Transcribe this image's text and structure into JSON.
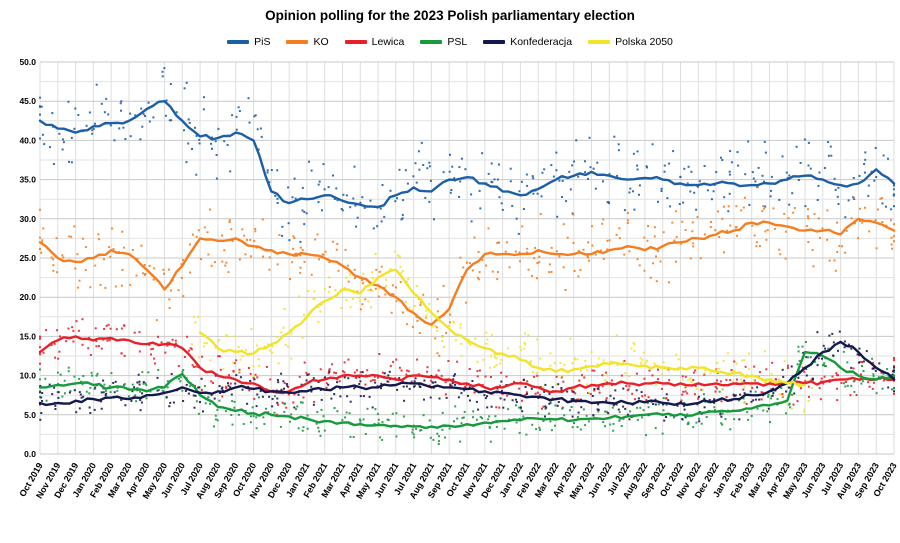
{
  "chart_data": {
    "type": "scatter",
    "title": "Opinion polling for the 2023 Polish parliamentary election",
    "ylim": [
      0,
      50
    ],
    "ytick_step": 5,
    "yminor_step": 2.5,
    "ytick_decimals": 1,
    "grid": true,
    "legend_position": "top",
    "x": [
      "Oct 2019",
      "Nov 2019",
      "Dec 2019",
      "Jan 2020",
      "Feb 2020",
      "Mar 2020",
      "Apr 2020",
      "May 2020",
      "Jun 2020",
      "Jul 2020",
      "Aug 2020",
      "Sep 2020",
      "Oct 2020",
      "Nov 2020",
      "Dec 2020",
      "Jan 2021",
      "Feb 2021",
      "Mar 2021",
      "Apr 2021",
      "May 2021",
      "Jun 2021",
      "Jul 2021",
      "Aug 2021",
      "Sep 2021",
      "Oct 2021",
      "Nov 2021",
      "Dec 2021",
      "Jan 2022",
      "Feb 2022",
      "Mar 2022",
      "Apr 2022",
      "May 2022",
      "Jun 2022",
      "Jul 2022",
      "Aug 2022",
      "Sep 2022",
      "Oct 2022",
      "Nov 2022",
      "Dec 2022",
      "Jan 2023",
      "Feb 2023",
      "Mar 2023",
      "Apr 2023",
      "May 2023",
      "Jun 2023",
      "Jul 2023",
      "Aug 2023",
      "Sep 2023",
      "Oct 2023"
    ],
    "series": [
      {
        "name": "PiS",
        "color": "#1c5fa6",
        "spread": 3.0,
        "values": [
          42.5,
          41.5,
          41.0,
          41.8,
          42.2,
          42.5,
          44.0,
          45.0,
          42.5,
          40.5,
          40.3,
          41.0,
          40.0,
          33.5,
          32.0,
          32.5,
          33.0,
          32.3,
          31.8,
          31.5,
          33.0,
          34.0,
          33.5,
          35.0,
          35.3,
          34.5,
          33.5,
          33.0,
          33.8,
          35.0,
          35.5,
          36.0,
          35.5,
          35.0,
          35.2,
          35.0,
          34.5,
          34.3,
          34.5,
          34.5,
          34.3,
          34.5,
          35.0,
          35.5,
          35.0,
          34.3,
          34.5,
          36.3,
          34.5
        ]
      },
      {
        "name": "KO",
        "color": "#f57e20",
        "spread": 2.6,
        "values": [
          27.0,
          25.0,
          24.5,
          25.0,
          26.0,
          25.5,
          23.5,
          21.0,
          24.0,
          27.5,
          27.2,
          27.5,
          26.5,
          26.0,
          25.5,
          25.5,
          25.0,
          24.0,
          22.5,
          21.5,
          20.0,
          18.0,
          16.5,
          18.5,
          23.5,
          25.5,
          25.5,
          25.5,
          26.0,
          25.5,
          25.5,
          25.5,
          26.0,
          26.5,
          26.0,
          26.5,
          27.0,
          27.5,
          28.0,
          28.5,
          29.5,
          29.5,
          29.0,
          28.5,
          28.5,
          28.0,
          30.0,
          29.5,
          28.5
        ]
      },
      {
        "name": "Lewica",
        "color": "#e8202a",
        "spread": 1.6,
        "values": [
          13.0,
          14.5,
          15.0,
          14.5,
          14.8,
          14.5,
          14.0,
          14.0,
          13.5,
          11.0,
          10.0,
          9.5,
          9.0,
          8.0,
          8.0,
          9.0,
          9.5,
          10.0,
          10.0,
          10.0,
          9.5,
          10.0,
          9.8,
          9.5,
          9.0,
          8.5,
          8.5,
          9.0,
          8.5,
          8.0,
          8.5,
          8.8,
          9.0,
          9.0,
          9.0,
          9.0,
          9.0,
          9.0,
          9.0,
          9.0,
          9.0,
          9.0,
          9.0,
          9.0,
          9.2,
          9.5,
          9.5,
          9.5,
          9.5
        ]
      },
      {
        "name": "PSL",
        "color": "#179a3d",
        "spread": 1.4,
        "values": [
          8.5,
          8.8,
          9.0,
          8.8,
          8.5,
          8.2,
          8.0,
          8.5,
          10.2,
          7.5,
          6.0,
          5.5,
          5.2,
          5.0,
          4.8,
          4.5,
          4.2,
          4.0,
          3.8,
          3.7,
          3.6,
          3.5,
          3.5,
          3.6,
          3.8,
          4.0,
          4.2,
          4.3,
          4.5,
          4.4,
          4.3,
          4.5,
          4.6,
          4.8,
          5.0,
          5.0,
          5.1,
          5.2,
          5.4,
          5.5,
          5.8,
          6.2,
          6.8,
          13.0,
          12.5,
          11.0,
          10.0,
          9.5,
          10.0
        ]
      },
      {
        "name": "Konfederacja",
        "color": "#14194d",
        "spread": 1.4,
        "values": [
          6.5,
          6.5,
          6.8,
          7.0,
          7.2,
          7.0,
          7.5,
          7.8,
          8.5,
          7.8,
          8.0,
          8.5,
          8.3,
          8.0,
          7.8,
          8.0,
          8.2,
          8.5,
          8.5,
          8.5,
          8.8,
          9.0,
          8.5,
          8.5,
          8.3,
          8.0,
          7.8,
          7.5,
          7.3,
          7.0,
          6.8,
          6.5,
          6.5,
          6.5,
          6.6,
          6.5,
          6.5,
          6.5,
          6.8,
          7.0,
          7.5,
          8.0,
          9.0,
          11.0,
          13.0,
          14.3,
          13.0,
          11.0,
          9.5
        ]
      },
      {
        "name": "Polska 2050",
        "color": "#f2e32b",
        "spread": 2.0,
        "values": [
          null,
          null,
          null,
          null,
          null,
          null,
          null,
          null,
          null,
          15.5,
          13.5,
          13.0,
          12.8,
          14.0,
          15.5,
          17.5,
          19.5,
          21.0,
          20.5,
          22.5,
          23.5,
          20.5,
          18.0,
          16.0,
          14.5,
          13.5,
          12.8,
          12.0,
          11.0,
          10.5,
          10.8,
          11.2,
          11.5,
          11.5,
          11.3,
          11.0,
          11.0,
          11.0,
          10.5,
          10.3,
          10.0,
          9.5,
          9.0,
          8.8,
          null,
          null,
          null,
          null,
          null
        ]
      }
    ],
    "scatter": {
      "points_per_month": 8,
      "point_size": 2,
      "seed": 42
    },
    "grid_color_major": "#c9c9c9",
    "grid_color_minor": "#e2e2e2",
    "grid_color_vertical": "#dedede"
  }
}
